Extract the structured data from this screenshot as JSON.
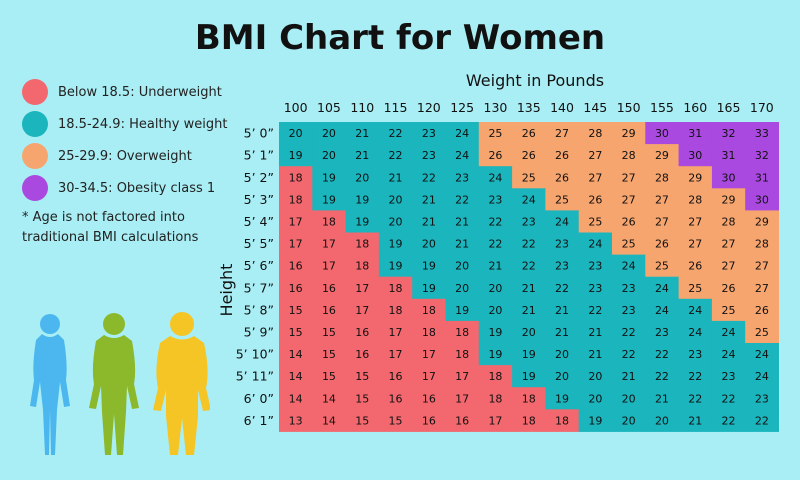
{
  "title": "BMI Chart for Women",
  "legend": [
    {
      "label": "Below 18.5: Underweight",
      "color": "#f2686e"
    },
    {
      "label": "18.5-24.9: Healthy weight",
      "color": "#1bb5bd"
    },
    {
      "label": "25-29.9: Overweight",
      "color": "#f7a56e"
    },
    {
      "label": "30-34.5: Obesity class 1",
      "color": "#a949df"
    }
  ],
  "note": "* Age is not factored into traditional BMI calculations",
  "figure_colors": [
    "#4cb7ee",
    "#8cb82b",
    "#f5c425"
  ],
  "chart_data": {
    "type": "heatmap",
    "xlabel": "Weight in Pounds",
    "ylabel": "Height",
    "x": [
      "100",
      "105",
      "110",
      "115",
      "120",
      "125",
      "130",
      "135",
      "140",
      "145",
      "150",
      "155",
      "160",
      "165",
      "170"
    ],
    "y": [
      "5’ 0”",
      "5’ 1”",
      "5’ 2”",
      "5’ 3”",
      "5’ 4”",
      "5’ 5”",
      "5’ 6”",
      "5’ 7”",
      "5’ 8”",
      "5’ 9”",
      "5’ 10”",
      "5’ 11”",
      "6’ 0”",
      "6’ 1”"
    ],
    "values": [
      [
        20,
        20,
        21,
        22,
        23,
        24,
        25,
        26,
        27,
        28,
        29,
        30,
        31,
        32,
        33
      ],
      [
        19,
        20,
        21,
        22,
        23,
        24,
        26,
        26,
        26,
        27,
        28,
        29,
        30,
        31,
        32
      ],
      [
        18,
        19,
        20,
        21,
        22,
        23,
        24,
        25,
        26,
        27,
        27,
        28,
        29,
        30,
        31
      ],
      [
        18,
        19,
        19,
        20,
        21,
        22,
        23,
        24,
        25,
        26,
        27,
        27,
        28,
        29,
        30
      ],
      [
        17,
        18,
        19,
        20,
        21,
        21,
        22,
        23,
        24,
        25,
        26,
        27,
        27,
        28,
        29
      ],
      [
        17,
        17,
        18,
        19,
        20,
        21,
        22,
        22,
        23,
        24,
        25,
        26,
        27,
        27,
        28
      ],
      [
        16,
        17,
        18,
        19,
        19,
        20,
        21,
        22,
        23,
        23,
        24,
        25,
        26,
        27,
        27
      ],
      [
        16,
        16,
        17,
        18,
        19,
        20,
        20,
        21,
        22,
        23,
        23,
        24,
        25,
        26,
        27
      ],
      [
        15,
        16,
        17,
        18,
        18,
        19,
        20,
        21,
        21,
        22,
        23,
        24,
        24,
        25,
        26
      ],
      [
        15,
        15,
        16,
        17,
        18,
        18,
        19,
        20,
        21,
        21,
        22,
        23,
        24,
        24,
        25
      ],
      [
        14,
        15,
        16,
        17,
        17,
        18,
        19,
        19,
        20,
        21,
        22,
        22,
        23,
        24,
        24
      ],
      [
        14,
        15,
        15,
        16,
        17,
        17,
        18,
        19,
        20,
        20,
        21,
        22,
        22,
        23,
        24
      ],
      [
        14,
        14,
        15,
        16,
        16,
        17,
        18,
        18,
        19,
        20,
        20,
        21,
        22,
        22,
        23
      ],
      [
        13,
        14,
        15,
        15,
        16,
        16,
        17,
        18,
        18,
        19,
        20,
        20,
        21,
        22,
        22
      ]
    ],
    "category_map": [
      [
        1,
        1,
        1,
        1,
        1,
        1,
        2,
        2,
        2,
        2,
        2,
        3,
        3,
        3,
        3
      ],
      [
        1,
        1,
        1,
        1,
        1,
        1,
        2,
        2,
        2,
        2,
        2,
        2,
        3,
        3,
        3
      ],
      [
        0,
        1,
        1,
        1,
        1,
        1,
        1,
        2,
        2,
        2,
        2,
        2,
        2,
        3,
        3
      ],
      [
        0,
        1,
        1,
        1,
        1,
        1,
        1,
        1,
        2,
        2,
        2,
        2,
        2,
        2,
        3
      ],
      [
        0,
        0,
        1,
        1,
        1,
        1,
        1,
        1,
        1,
        2,
        2,
        2,
        2,
        2,
        2
      ],
      [
        0,
        0,
        0,
        1,
        1,
        1,
        1,
        1,
        1,
        1,
        2,
        2,
        2,
        2,
        2
      ],
      [
        0,
        0,
        0,
        1,
        1,
        1,
        1,
        1,
        1,
        1,
        1,
        2,
        2,
        2,
        2
      ],
      [
        0,
        0,
        0,
        0,
        1,
        1,
        1,
        1,
        1,
        1,
        1,
        1,
        2,
        2,
        2
      ],
      [
        0,
        0,
        0,
        0,
        0,
        1,
        1,
        1,
        1,
        1,
        1,
        1,
        1,
        2,
        2
      ],
      [
        0,
        0,
        0,
        0,
        0,
        0,
        1,
        1,
        1,
        1,
        1,
        1,
        1,
        1,
        2
      ],
      [
        0,
        0,
        0,
        0,
        0,
        0,
        1,
        1,
        1,
        1,
        1,
        1,
        1,
        1,
        1
      ],
      [
        0,
        0,
        0,
        0,
        0,
        0,
        0,
        1,
        1,
        1,
        1,
        1,
        1,
        1,
        1
      ],
      [
        0,
        0,
        0,
        0,
        0,
        0,
        0,
        0,
        1,
        1,
        1,
        1,
        1,
        1,
        1
      ],
      [
        0,
        0,
        0,
        0,
        0,
        0,
        0,
        0,
        0,
        1,
        1,
        1,
        1,
        1,
        1
      ]
    ]
  }
}
